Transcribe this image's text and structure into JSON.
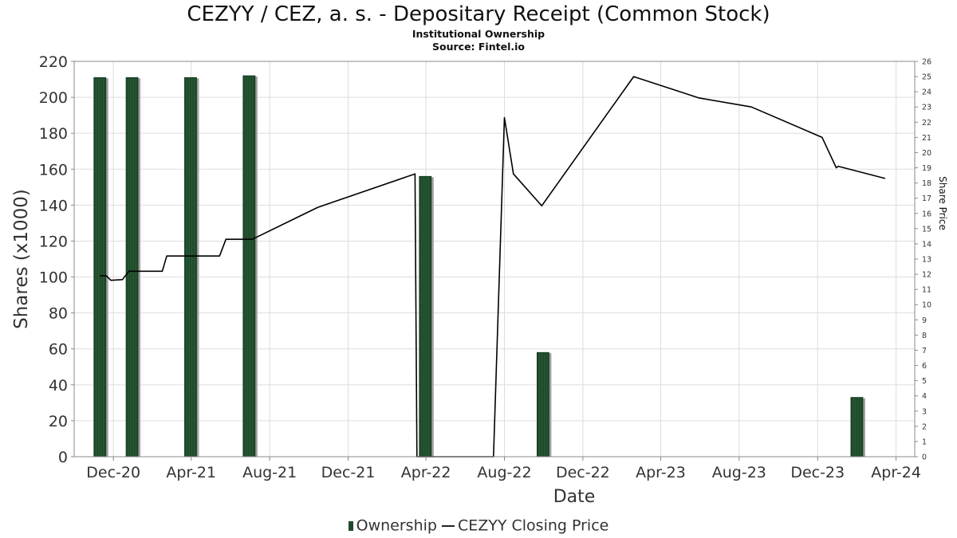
{
  "chart_data": {
    "type": "bar",
    "title": "CEZYY / CEZ, a. s. - Depositary Receipt (Common Stock)",
    "subtitle_lines": [
      "Institutional Ownership",
      "Source: Fintel.io"
    ],
    "xlabel": "Date",
    "ylabel": "Shares (x1000)",
    "y2label": "Share Price",
    "ylim": [
      0,
      220
    ],
    "y2lim": [
      0,
      26
    ],
    "xlim": [
      "2020-10-01",
      "2024-04-30"
    ],
    "x_ticks": [
      {
        "date": "2020-12-01",
        "label": "Dec-20"
      },
      {
        "date": "2021-04-01",
        "label": "Apr-21"
      },
      {
        "date": "2021-08-01",
        "label": "Aug-21"
      },
      {
        "date": "2021-12-01",
        "label": "Dec-21"
      },
      {
        "date": "2022-04-01",
        "label": "Apr-22"
      },
      {
        "date": "2022-08-01",
        "label": "Aug-22"
      },
      {
        "date": "2022-12-01",
        "label": "Dec-22"
      },
      {
        "date": "2023-04-01",
        "label": "Apr-23"
      },
      {
        "date": "2023-08-01",
        "label": "Aug-23"
      },
      {
        "date": "2023-12-01",
        "label": "Dec-23"
      },
      {
        "date": "2024-04-01",
        "label": "Apr-24"
      }
    ],
    "y_ticks": [
      0,
      20,
      40,
      60,
      80,
      100,
      120,
      140,
      160,
      180,
      200,
      220
    ],
    "y2_ticks": [
      0,
      1,
      2,
      3,
      4,
      5,
      6,
      7,
      8,
      9,
      10,
      11,
      12,
      13,
      14,
      15,
      16,
      17,
      18,
      19,
      20,
      21,
      22,
      23,
      24,
      25,
      26
    ],
    "grid": true,
    "legend_position": "bottom",
    "legend": [
      "Ownership",
      "CEZYY Closing Price"
    ],
    "colors": {
      "bar": "#1f4a2b",
      "bar_shadow": "#a0a0a0",
      "line": "#000000",
      "grid": "#dddddd"
    },
    "series": [
      {
        "name": "Ownership",
        "type": "bar",
        "axis": "left",
        "points": [
          {
            "date": "2020-11-10",
            "value": 211
          },
          {
            "date": "2020-12-30",
            "value": 211
          },
          {
            "date": "2021-03-31",
            "value": 211
          },
          {
            "date": "2021-06-30",
            "value": 212
          },
          {
            "date": "2022-03-31",
            "value": 156
          },
          {
            "date": "2022-09-30",
            "value": 58
          },
          {
            "date": "2024-01-31",
            "value": 33
          }
        ]
      },
      {
        "name": "CEZYY Closing Price",
        "type": "line",
        "axis": "right",
        "points": [
          {
            "date": "2020-11-10",
            "value": 11.9
          },
          {
            "date": "2020-11-20",
            "value": 11.9
          },
          {
            "date": "2020-11-27",
            "value": 11.6
          },
          {
            "date": "2020-12-15",
            "value": 11.65
          },
          {
            "date": "2020-12-25",
            "value": 12.2
          },
          {
            "date": "2021-02-15",
            "value": 12.2
          },
          {
            "date": "2021-02-22",
            "value": 13.2
          },
          {
            "date": "2021-05-05",
            "value": 13.2
          },
          {
            "date": "2021-05-15",
            "value": 13.2
          },
          {
            "date": "2021-05-25",
            "value": 14.3
          },
          {
            "date": "2021-07-05",
            "value": 14.3
          },
          {
            "date": "2021-10-15",
            "value": 16.4
          },
          {
            "date": "2022-03-15",
            "value": 18.6
          },
          {
            "date": "2022-03-18",
            "value": 0
          },
          {
            "date": "2022-07-15",
            "value": 0
          },
          {
            "date": "2022-08-01",
            "value": 22.3
          },
          {
            "date": "2022-08-15",
            "value": 18.6
          },
          {
            "date": "2022-09-28",
            "value": 16.5
          },
          {
            "date": "2023-02-18",
            "value": 25
          },
          {
            "date": "2023-05-30",
            "value": 23.6
          },
          {
            "date": "2023-08-20",
            "value": 23
          },
          {
            "date": "2023-12-08",
            "value": 21
          },
          {
            "date": "2023-12-30",
            "value": 19
          },
          {
            "date": "2024-01-02",
            "value": 19.1
          },
          {
            "date": "2024-03-15",
            "value": 18.3
          }
        ]
      }
    ]
  }
}
